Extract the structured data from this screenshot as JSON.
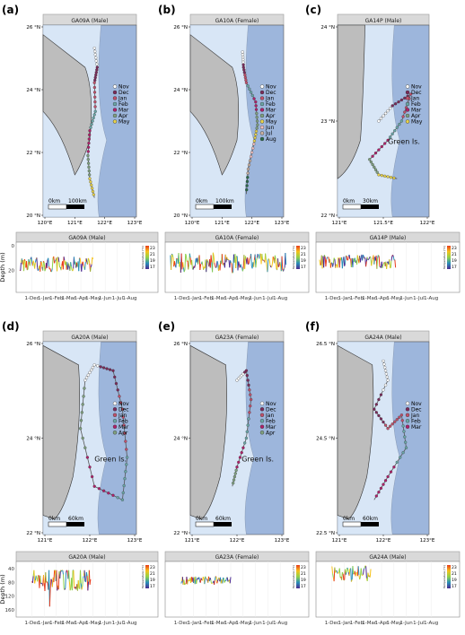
{
  "figure": {
    "legend_title": "Temperature (°C)",
    "legend_ticks": [
      "23",
      "21",
      "19",
      "17"
    ],
    "legend_colors": [
      "#e83a1c",
      "#f6c21a",
      "#8fd14a",
      "#2a8fb8",
      "#4b2a91"
    ],
    "land_color": "#bdbdbd",
    "shelf_color": "#d8e6f6",
    "ocean_color": "#9db6dc",
    "month_colors": {
      "Nov": "#ffffff",
      "Dec": "#7b2a5a",
      "Jan": "#c0506a",
      "Feb": "#6aa6a6",
      "Mar": "#b0206a",
      "Apr": "#7fa07f",
      "May": "#e8d24a",
      "Jun": "#f0c0c0",
      "Jul": "#c9b0a0",
      "Aug": "#2a6a4a"
    }
  },
  "panels": [
    {
      "letter": "(a)",
      "tag": "GA09A (Male)",
      "yticks": [
        "26 °N",
        "24 °N",
        "22 °N",
        "20 °N"
      ],
      "xticks": [
        "120°E",
        "121°E",
        "122°E",
        "123°E"
      ],
      "legend": [
        "Nov",
        "Dec",
        "Jan",
        "Feb",
        "Mar",
        "Apr",
        "May"
      ],
      "scale_zero": "0km",
      "scale_label": "100km",
      "note": ""
    },
    {
      "letter": "(b)",
      "tag": "GA10A (Female)",
      "yticks": [
        "26 °N",
        "24 °N",
        "22 °N",
        "20 °N"
      ],
      "xticks": [
        "120°E",
        "121°E",
        "122°E",
        "123°E"
      ],
      "legend": [
        "Nov",
        "Dec",
        "Jan",
        "Feb",
        "Mar",
        "Apr",
        "May",
        "Jun",
        "Jul",
        "Aug"
      ],
      "scale_zero": "0km",
      "scale_label": "100km",
      "note": ""
    },
    {
      "letter": "(c)",
      "tag": "GA14P (Male)",
      "yticks": [
        "24 °N",
        "23 °N",
        "22 °N"
      ],
      "xticks": [
        "121°E",
        "121.5°E",
        "122°E"
      ],
      "legend": [
        "Nov",
        "Dec",
        "Jan",
        "Feb",
        "Mar",
        "Apr",
        "May"
      ],
      "scale_zero": "0km",
      "scale_label": "30km",
      "note": "Green Is."
    },
    {
      "letter": "(d)",
      "tag": "GA20A (Male)",
      "yticks": [
        "26 °N",
        "24 °N",
        "22 °N"
      ],
      "xticks": [
        "121°E",
        "122°E",
        "123°E"
      ],
      "legend": [
        "Nov",
        "Dec",
        "Jan",
        "Feb",
        "Mar",
        "Apr"
      ],
      "scale_zero": "0km",
      "scale_label": "60km",
      "note": "Green Is."
    },
    {
      "letter": "(e)",
      "tag": "GA23A (Female)",
      "yticks": [
        "26 °N",
        "24 °N",
        "22 °N"
      ],
      "xticks": [
        "121°E",
        "122°E",
        "123°E"
      ],
      "legend": [
        "Nov",
        "Dec",
        "Jan",
        "Feb",
        "Mar",
        "Apr"
      ],
      "scale_zero": "0km",
      "scale_label": "60km",
      "note": "Green Is."
    },
    {
      "letter": "(f)",
      "tag": "GA24A (Male)",
      "yticks": [
        "26.5 °N",
        "24.5 °N",
        "22.5 °N"
      ],
      "xticks": [
        "121°E",
        "122°E",
        "123°E"
      ],
      "legend": [
        "Nov",
        "Dec",
        "Jan",
        "Feb",
        "Mar"
      ],
      "scale_zero": "0km",
      "scale_label": "60km",
      "note": ""
    }
  ],
  "chart_data": [
    {
      "type": "line",
      "title": "GA09A (Male)",
      "ylabel": "Depth (m)",
      "x": [
        "1-Dec",
        "1-Jan",
        "1-Feb",
        "1-Mar",
        "1-Apr",
        "1-May",
        "1-Jun",
        "1-Jul",
        "1-Aug"
      ],
      "yticks": [
        "0",
        "20"
      ],
      "start": "1-Nov",
      "end": "1-May",
      "depth_mean": 15,
      "depth_range": [
        6,
        24
      ],
      "legend": {
        "title": "Temperature (°C)",
        "ticks": [
          "23",
          "21",
          "19",
          "17"
        ]
      }
    },
    {
      "type": "line",
      "title": "GA10A (Female)",
      "ylabel": "",
      "x": [
        "1-Dec",
        "1-Jan",
        "1-Feb",
        "1-Mar",
        "1-Apr",
        "1-May",
        "1-Jun",
        "1-Jul",
        "1-Aug"
      ],
      "yticks": [],
      "start": "5-Nov",
      "end": "15-Aug",
      "depth_mean": 14,
      "depth_range": [
        4,
        28
      ],
      "legend": {
        "title": "Temperature (°C)",
        "ticks": [
          "23",
          "21",
          "19",
          "17"
        ]
      }
    },
    {
      "type": "line",
      "title": "GA14P (Male)",
      "ylabel": "",
      "x": [
        "1-Dec",
        "1-Jan",
        "1-Feb",
        "1-Mar",
        "1-Apr",
        "1-May",
        "1-Jun",
        "1-Jul",
        "1-Aug"
      ],
      "yticks": [],
      "start": "1-Nov",
      "end": "5-May",
      "depth_mean": 13,
      "depth_range": [
        5,
        22
      ],
      "legend": {
        "title": "Temperature (°C)",
        "ticks": [
          "23",
          "21",
          "19",
          "17"
        ]
      }
    },
    {
      "type": "line",
      "title": "GA20A (Male)",
      "ylabel": "Depth (m)",
      "x": [
        "1-Dec",
        "1-Jan",
        "1-Feb",
        "1-Mar",
        "1-Apr",
        "1-May",
        "1-Jun",
        "1-Jul",
        "1-Aug"
      ],
      "yticks": [
        "40",
        "80",
        "120",
        "160"
      ],
      "start": "1-Dec",
      "end": "25-Apr",
      "depth_mean": 70,
      "depth_range": [
        45,
        150
      ],
      "legend": {
        "title": "Temperature (°C)",
        "ticks": [
          "23",
          "21",
          "19",
          "17"
        ]
      }
    },
    {
      "type": "line",
      "title": "GA23A (Female)",
      "ylabel": "",
      "x": [
        "1-Dec",
        "1-Jan",
        "1-Feb",
        "1-Mar",
        "1-Apr",
        "1-May",
        "1-Jun",
        "1-Jul",
        "1-Aug"
      ],
      "yticks": [],
      "start": "1-Dec",
      "end": "1-Apr",
      "depth_mean": 75,
      "depth_range": [
        60,
        95
      ],
      "legend": {
        "title": "Temperature (°C)",
        "ticks": [
          "23",
          "21",
          "19",
          "17"
        ]
      }
    },
    {
      "type": "line",
      "title": "GA24A (Male)",
      "ylabel": "",
      "x": [
        "1-Dec",
        "1-Jan",
        "1-Feb",
        "1-Mar",
        "1-Apr",
        "1-May",
        "1-Jun",
        "1-Jul",
        "1-Aug"
      ],
      "yticks": [],
      "start": "1-Dec",
      "end": "5-Mar",
      "depth_mean": 55,
      "depth_range": [
        30,
        100
      ],
      "legend": {
        "title": "Temperature (°C)",
        "ticks": [
          "23",
          "21",
          "19",
          "17"
        ]
      }
    }
  ]
}
